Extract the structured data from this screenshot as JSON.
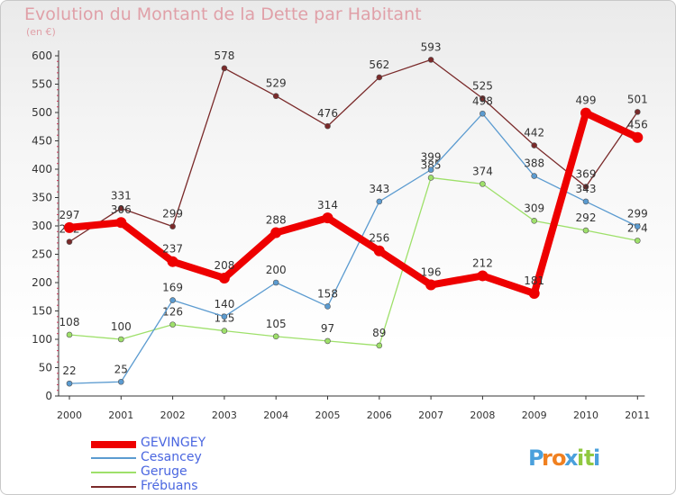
{
  "chart_data": {
    "type": "line",
    "title": "Evolution du Montant de la Dette par Habitant",
    "subtitle": "(en €)",
    "categories": [
      "2000",
      "2001",
      "2002",
      "2003",
      "2004",
      "2005",
      "2006",
      "2007",
      "2008",
      "2009",
      "2010",
      "2011"
    ],
    "y_ticks": [
      0,
      50,
      100,
      150,
      200,
      250,
      300,
      350,
      400,
      450,
      500,
      550,
      600
    ],
    "ylim": [
      0,
      600
    ],
    "grid": false,
    "legend_position": "bottom-left",
    "series": [
      {
        "name": "Frébuans",
        "color": "#7a2a2a",
        "values": [
          272,
          331,
          299,
          578,
          529,
          476,
          562,
          593,
          525,
          442,
          369,
          501
        ],
        "labels": [
          "272",
          "331",
          "299",
          "578",
          "529",
          "476",
          "562",
          "593",
          "525",
          "442",
          "369",
          "501"
        ]
      },
      {
        "name": "Geruge",
        "color": "#9ee06a",
        "values": [
          108,
          100,
          126,
          115,
          105,
          97,
          89,
          385,
          374,
          309,
          292,
          274
        ],
        "labels": [
          "108",
          "100",
          "126",
          "115",
          "105",
          "97",
          "89",
          "385",
          "374",
          "309",
          "292",
          "274"
        ]
      },
      {
        "name": "Cesancey",
        "color": "#5b9bd0",
        "values": [
          22,
          25,
          169,
          140,
          200,
          158,
          343,
          399,
          498,
          388,
          343,
          299
        ],
        "labels": [
          "22",
          "25",
          "169",
          "140",
          "200",
          "158",
          "343",
          "399",
          "498",
          "388",
          "343",
          "299"
        ]
      },
      {
        "name": "GEVINGEY",
        "color": "#ee0000",
        "values": [
          297,
          306,
          237,
          208,
          288,
          314,
          256,
          196,
          212,
          181,
          499,
          456
        ],
        "labels": [
          "297",
          "306",
          "237",
          "208",
          "288",
          "314",
          "256",
          "196",
          "212",
          "181",
          "499",
          "456"
        ]
      }
    ]
  },
  "legend": {
    "items": [
      {
        "label": "GEVINGEY",
        "color": "#ee0000"
      },
      {
        "label": "Cesancey",
        "color": "#5b9bd0"
      },
      {
        "label": "Geruge",
        "color": "#9ee06a"
      },
      {
        "label": "Frébuans",
        "color": "#7a2a2a"
      }
    ]
  },
  "brand": {
    "letters": [
      "P",
      "r",
      "o",
      "x",
      "i",
      "t",
      "i"
    ],
    "colors": [
      "#4aa0dc",
      "#f08020",
      "#f08020",
      "#4aa0dc",
      "#90c840",
      "#90c840",
      "#4aa0dc"
    ]
  }
}
